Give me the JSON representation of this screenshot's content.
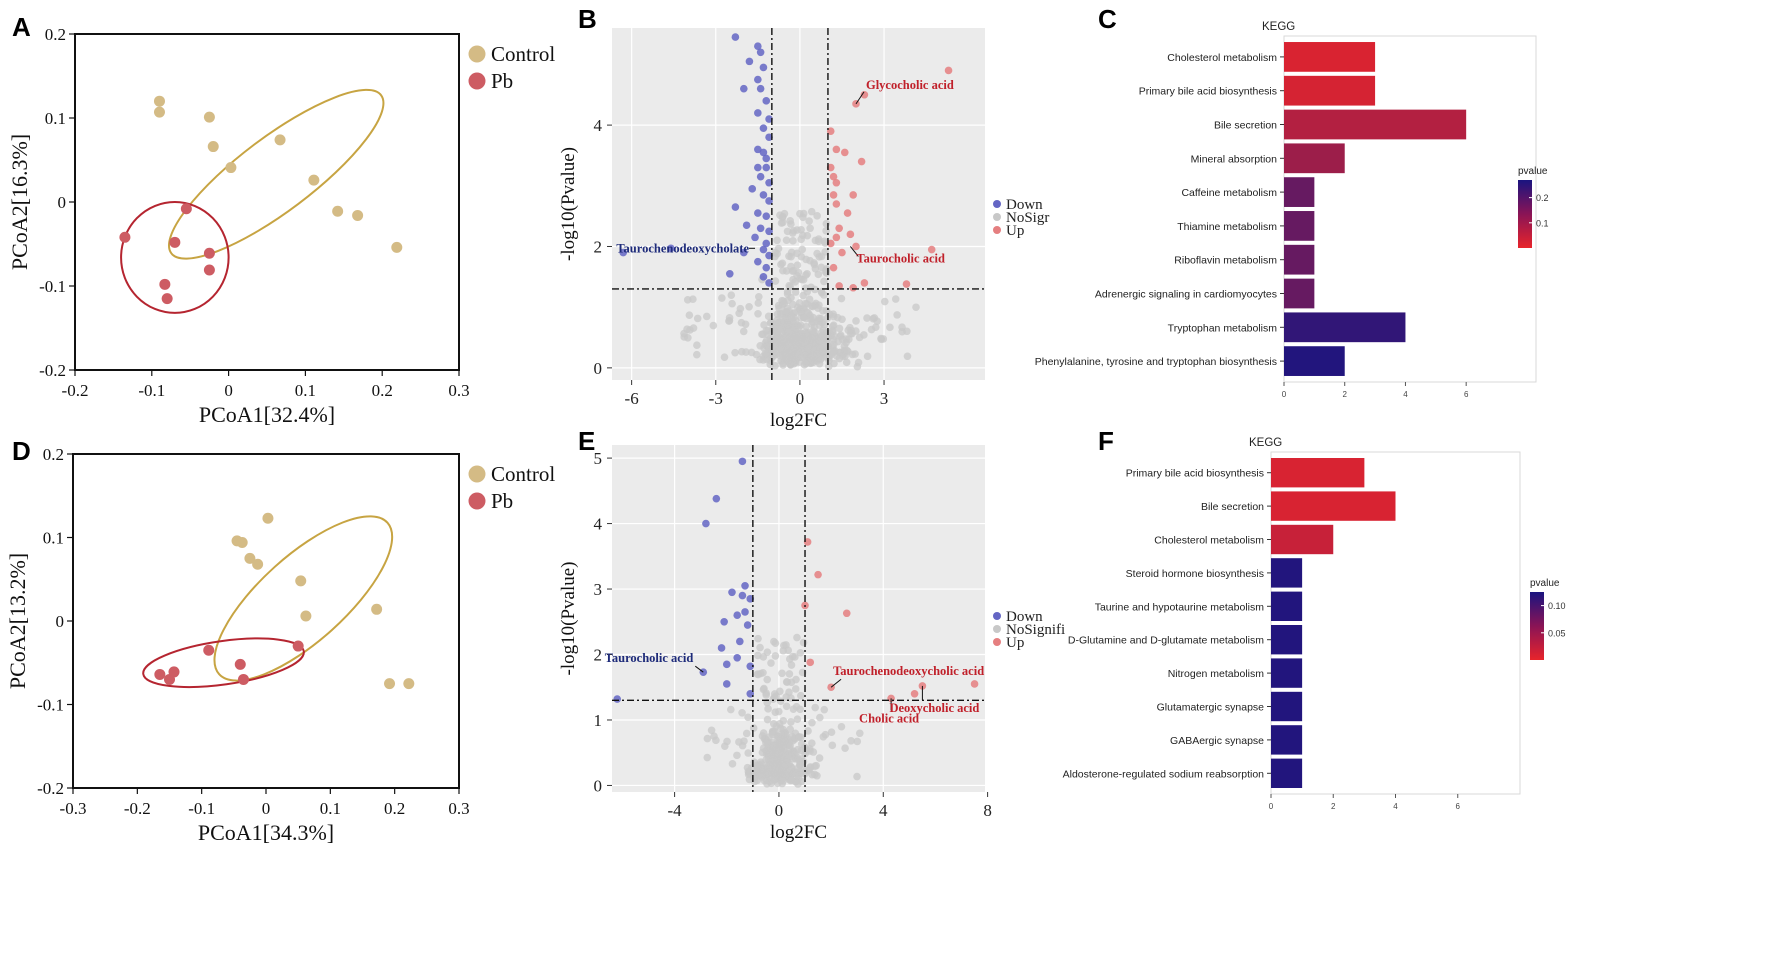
{
  "panels": [
    {
      "id": "A",
      "letter": "A"
    },
    {
      "id": "B",
      "letter": "B"
    },
    {
      "id": "C",
      "letter": "C"
    },
    {
      "id": "D",
      "letter": "D"
    },
    {
      "id": "E",
      "letter": "E"
    },
    {
      "id": "F",
      "letter": "F"
    }
  ],
  "colors": {
    "control": "#D4BB85",
    "control_ellipse": "#C7A442",
    "pb": "#CD5C63",
    "pb_ellipse": "#B52530",
    "down": "#6466C4",
    "nosig": "#C8C8C8",
    "up": "#E57F80",
    "down_label": "#1E2B7A",
    "up_label": "#C0202A",
    "volcano_bg": "#EBEBEB"
  },
  "chart_data": [
    {
      "panel": "A",
      "type": "scatter",
      "title": "",
      "xlabel": "PCoA1[32.4%]",
      "ylabel": "PCoA2[16.3%]",
      "xlim": [
        -0.2,
        0.3
      ],
      "ylim": [
        -0.2,
        0.2
      ],
      "xticks": [
        -0.2,
        -0.1,
        0,
        0.1,
        0.2,
        0.3
      ],
      "yticks": [
        -0.2,
        -0.1,
        0,
        0.1,
        0.2
      ],
      "xtick_labels": [
        "-0.2",
        "-0.1",
        "0",
        "0.1",
        "0.2",
        "0.3"
      ],
      "ytick_labels": [
        "-0.2",
        "-0.1",
        "0",
        "0.1",
        "0.2"
      ],
      "legend": [
        "Control",
        "Pb"
      ],
      "series": [
        {
          "name": "Control",
          "points": [
            [
              -0.09,
              0.12
            ],
            [
              -0.09,
              0.107
            ],
            [
              -0.025,
              0.101
            ],
            [
              -0.02,
              0.066
            ],
            [
              0.003,
              0.041
            ],
            [
              0.067,
              0.074
            ],
            [
              0.111,
              0.026
            ],
            [
              0.142,
              -0.011
            ],
            [
              0.168,
              -0.016
            ],
            [
              0.219,
              -0.054
            ]
          ]
        },
        {
          "name": "Pb",
          "points": [
            [
              -0.135,
              -0.042
            ],
            [
              -0.07,
              -0.048
            ],
            [
              -0.055,
              -0.008
            ],
            [
              -0.025,
              -0.061
            ],
            [
              -0.025,
              -0.081
            ],
            [
              -0.083,
              -0.098
            ],
            [
              -0.08,
              -0.115
            ]
          ]
        }
      ],
      "ellipses": [
        {
          "name": "Control",
          "cx": 0.062,
          "cy": 0.033,
          "rx": 0.171,
          "ry": 0.044,
          "angle_deg": -37
        },
        {
          "name": "Pb",
          "cx": -0.07,
          "cy": -0.066,
          "rx": 0.07,
          "ry": 0.066,
          "angle_deg": 0
        }
      ]
    },
    {
      "panel": "B",
      "type": "scatter",
      "title": "",
      "xlabel": "log2FC",
      "ylabel": "-log10(Pvalue)",
      "xlim": [
        -6.7,
        6.6
      ],
      "ylim": [
        -0.2,
        5.6
      ],
      "xticks": [
        -6,
        -3,
        0,
        3
      ],
      "yticks": [
        0,
        2,
        4
      ],
      "xtick_labels": [
        "-6",
        "-3",
        "0",
        "3"
      ],
      "ytick_labels": [
        "0",
        "2",
        "4"
      ],
      "fc_thresholds": [
        -1,
        1
      ],
      "p_threshold": 1.3,
      "legend": [
        "Down",
        "NoSigr",
        "Up"
      ],
      "series": [
        {
          "name": "Down",
          "points": [
            [
              -2.3,
              5.45
            ],
            [
              -1.5,
              5.3
            ],
            [
              -1.4,
              5.2
            ],
            [
              -1.8,
              5.05
            ],
            [
              -1.3,
              4.95
            ],
            [
              -1.5,
              4.75
            ],
            [
              -2.0,
              4.6
            ],
            [
              -1.4,
              4.6
            ],
            [
              -1.2,
              4.4
            ],
            [
              -1.5,
              4.2
            ],
            [
              -1.1,
              4.1
            ],
            [
              -1.3,
              3.95
            ],
            [
              -1.1,
              3.8
            ],
            [
              -1.5,
              3.6
            ],
            [
              -1.3,
              3.55
            ],
            [
              -1.2,
              3.45
            ],
            [
              -1.5,
              3.3
            ],
            [
              -1.2,
              3.3
            ],
            [
              -1.4,
              3.15
            ],
            [
              -1.1,
              3.05
            ],
            [
              -1.7,
              2.95
            ],
            [
              -1.3,
              2.85
            ],
            [
              -1.1,
              2.75
            ],
            [
              -2.3,
              2.65
            ],
            [
              -1.5,
              2.55
            ],
            [
              -1.2,
              2.5
            ],
            [
              -1.9,
              2.35
            ],
            [
              -1.4,
              2.3
            ],
            [
              -1.1,
              2.25
            ],
            [
              -1.6,
              2.15
            ],
            [
              -1.2,
              2.05
            ],
            [
              -1.3,
              1.95
            ],
            [
              -1.1,
              1.85
            ],
            [
              -2.0,
              1.9
            ],
            [
              -1.5,
              1.75
            ],
            [
              -1.2,
              1.65
            ],
            [
              -2.5,
              1.55
            ],
            [
              -1.3,
              1.5
            ],
            [
              -1.1,
              1.4
            ],
            [
              -4.6,
              1.97
            ],
            [
              -6.3,
              1.9
            ]
          ]
        },
        {
          "name": "Up",
          "points": [
            [
              5.3,
              4.9
            ],
            [
              2.3,
              4.5
            ],
            [
              2.0,
              4.35
            ],
            [
              1.1,
              3.9
            ],
            [
              1.3,
              3.6
            ],
            [
              1.6,
              3.55
            ],
            [
              2.2,
              3.4
            ],
            [
              1.1,
              3.3
            ],
            [
              1.2,
              3.15
            ],
            [
              1.3,
              3.05
            ],
            [
              1.2,
              2.85
            ],
            [
              1.9,
              2.85
            ],
            [
              1.3,
              2.7
            ],
            [
              1.7,
              2.55
            ],
            [
              1.4,
              2.3
            ],
            [
              1.8,
              2.2
            ],
            [
              1.3,
              2.15
            ],
            [
              1.1,
              2.05
            ],
            [
              1.5,
              1.9
            ],
            [
              2.0,
              2.0
            ],
            [
              4.7,
              1.95
            ],
            [
              1.2,
              1.65
            ],
            [
              1.4,
              1.35
            ],
            [
              2.3,
              1.4
            ],
            [
              3.8,
              1.38
            ],
            [
              1.9,
              1.32
            ]
          ]
        },
        {
          "name": "NoSig",
          "generated": true,
          "count": 520
        }
      ],
      "annotations": [
        {
          "text": "Glycocholic acid",
          "x": 2.0,
          "y": 4.35,
          "group": "Up"
        },
        {
          "text": "Taurocholic acid",
          "x": 1.8,
          "y": 2.0,
          "group": "Up"
        },
        {
          "text": "Taurochenodeoxycholate",
          "x": -1.6,
          "y": 1.97,
          "group": "Down"
        }
      ]
    },
    {
      "panel": "C",
      "type": "bar",
      "title": "KEGG",
      "orientation": "horizontal",
      "xlabel": "",
      "ylabel": "",
      "xlim": [
        0,
        8.3
      ],
      "xticks": [
        0,
        2,
        4,
        6
      ],
      "xtick_labels": [
        "0",
        "2",
        "4",
        "6"
      ],
      "categories": [
        "Cholesterol metabolism",
        "Primary bile acid biosynthesis",
        "Bile secretion",
        "Mineral absorption",
        "Caffeine metabolism",
        "Thiamine metabolism",
        "Riboflavin metabolism",
        "Adrenergic signaling in cardiomyocytes",
        "Tryptophan metabolism",
        "Phenylalanine, tyrosine and tryptophan biosynthesis"
      ],
      "values": [
        3,
        3,
        6,
        2,
        1,
        1,
        1,
        1,
        4,
        2
      ],
      "pvalues": [
        0.02,
        0.025,
        0.07,
        0.1,
        0.17,
        0.17,
        0.17,
        0.17,
        0.24,
        0.26
      ],
      "colorbar": {
        "title": "pvalue",
        "ticks": [
          0.2,
          0.1
        ],
        "tick_labels": [
          "0.2",
          "0.1"
        ],
        "range": [
          0.0,
          0.27
        ]
      }
    },
    {
      "panel": "D",
      "type": "scatter",
      "title": "",
      "xlabel": "PCoA1[34.3%]",
      "ylabel": "PCoA2[13.2%]",
      "xlim": [
        -0.3,
        0.3
      ],
      "ylim": [
        -0.2,
        0.2
      ],
      "xticks": [
        -0.3,
        -0.2,
        -0.1,
        0,
        0.1,
        0.2,
        0.3
      ],
      "yticks": [
        -0.2,
        -0.1,
        0,
        0.1,
        0.2
      ],
      "xtick_labels": [
        "-0.3",
        "-0.2",
        "-0.1",
        "0",
        "0.1",
        "0.2",
        "0.3"
      ],
      "ytick_labels": [
        "-0.2",
        "-0.1",
        "0",
        "0.1",
        "0.2"
      ],
      "legend": [
        "Control",
        "Pb"
      ],
      "series": [
        {
          "name": "Control",
          "points": [
            [
              0.003,
              0.123
            ],
            [
              -0.045,
              0.096
            ],
            [
              -0.037,
              0.094
            ],
            [
              -0.025,
              0.075
            ],
            [
              -0.013,
              0.068
            ],
            [
              0.054,
              0.048
            ],
            [
              0.062,
              0.006
            ],
            [
              0.172,
              0.014
            ],
            [
              0.192,
              -0.075
            ],
            [
              0.222,
              -0.075
            ]
          ]
        },
        {
          "name": "Pb",
          "points": [
            [
              -0.089,
              -0.035
            ],
            [
              -0.04,
              -0.052
            ],
            [
              -0.035,
              -0.07
            ],
            [
              0.05,
              -0.03
            ],
            [
              -0.143,
              -0.061
            ],
            [
              -0.15,
              -0.07
            ],
            [
              -0.165,
              -0.064
            ]
          ]
        }
      ],
      "ellipses": [
        {
          "name": "Control",
          "cx": 0.058,
          "cy": 0.027,
          "rx": 0.176,
          "ry": 0.051,
          "angle_deg": -42
        },
        {
          "name": "Pb",
          "cx": -0.066,
          "cy": -0.05,
          "rx": 0.126,
          "ry": 0.026,
          "angle_deg": -8
        }
      ]
    },
    {
      "panel": "E",
      "type": "scatter",
      "title": "",
      "xlabel": "log2FC",
      "ylabel": "-log10(Pvalue)",
      "xlim": [
        -6.4,
        7.9
      ],
      "ylim": [
        -0.1,
        5.2
      ],
      "xticks": [
        -4,
        0,
        4,
        8
      ],
      "yticks": [
        0,
        1,
        2,
        3,
        4,
        5
      ],
      "xtick_labels": [
        "-4",
        "0",
        "4",
        "8"
      ],
      "ytick_labels": [
        "0",
        "1",
        "2",
        "3",
        "4",
        "5"
      ],
      "fc_thresholds": [
        -1,
        1
      ],
      "p_threshold": 1.3,
      "legend": [
        "Down",
        "NoSignifi",
        "Up"
      ],
      "series": [
        {
          "name": "Down",
          "points": [
            [
              -1.4,
              4.95
            ],
            [
              -2.4,
              4.38
            ],
            [
              -2.8,
              4.0
            ],
            [
              -1.3,
              3.05
            ],
            [
              -1.8,
              2.95
            ],
            [
              -1.4,
              2.9
            ],
            [
              -1.1,
              2.85
            ],
            [
              -1.3,
              2.65
            ],
            [
              -1.6,
              2.6
            ],
            [
              -2.1,
              2.5
            ],
            [
              -1.2,
              2.45
            ],
            [
              -1.5,
              2.2
            ],
            [
              -2.2,
              2.1
            ],
            [
              -1.6,
              1.95
            ],
            [
              -1.1,
              1.82
            ],
            [
              -2.0,
              1.85
            ],
            [
              -2.9,
              1.73
            ],
            [
              -2.0,
              1.55
            ],
            [
              -1.1,
              1.4
            ],
            [
              -6.2,
              1.32
            ]
          ]
        },
        {
          "name": "Up",
          "points": [
            [
              1.1,
              3.72
            ],
            [
              1.5,
              3.22
            ],
            [
              2.6,
              2.63
            ],
            [
              1.0,
              2.75
            ],
            [
              1.2,
              1.88
            ],
            [
              2.0,
              1.5
            ],
            [
              4.3,
              1.33
            ],
            [
              5.2,
              1.4
            ],
            [
              5.5,
              1.52
            ],
            [
              7.5,
              1.55
            ]
          ]
        },
        {
          "name": "NoSig",
          "generated": true,
          "count": 330
        }
      ],
      "annotations": [
        {
          "text": "Taurocholic acid",
          "x": -2.9,
          "y": 1.73,
          "group": "Down"
        },
        {
          "text": "Taurochenodeoxycholic acid",
          "x": 2.0,
          "y": 1.5,
          "group": "Up"
        },
        {
          "text": "Cholic acid",
          "x": 4.3,
          "y": 1.33,
          "group": "Up"
        },
        {
          "text": "Deoxycholic acid",
          "x": 5.5,
          "y": 1.52,
          "group": "Up"
        }
      ]
    },
    {
      "panel": "F",
      "type": "bar",
      "title": "KEGG",
      "orientation": "horizontal",
      "xlabel": "",
      "ylabel": "",
      "xlim": [
        0,
        8.0
      ],
      "xticks": [
        0,
        2,
        4,
        6
      ],
      "xtick_labels": [
        "0",
        "2",
        "4",
        "6"
      ],
      "categories": [
        "Primary bile acid biosynthesis",
        "Bile secretion",
        "Cholesterol metabolism",
        "Steroid hormone biosynthesis",
        "Taurine and hypotaurine metabolism",
        "D-Glutamine and D-glutamate metabolism",
        "Nitrogen metabolism",
        "Glutamatergic synapse",
        "GABAergic synapse",
        "Aldosterone-regulated sodium reabsorption"
      ],
      "values": [
        3,
        4,
        2,
        1,
        1,
        1,
        1,
        1,
        1,
        1
      ],
      "pvalues": [
        0.01,
        0.01,
        0.02,
        0.12,
        0.12,
        0.12,
        0.12,
        0.12,
        0.12,
        0.12
      ],
      "colorbar": {
        "title": "pvalue",
        "ticks": [
          0.1,
          0.05
        ],
        "tick_labels": [
          "0.10",
          "0.05"
        ],
        "range": [
          0.0,
          0.125
        ]
      }
    }
  ]
}
